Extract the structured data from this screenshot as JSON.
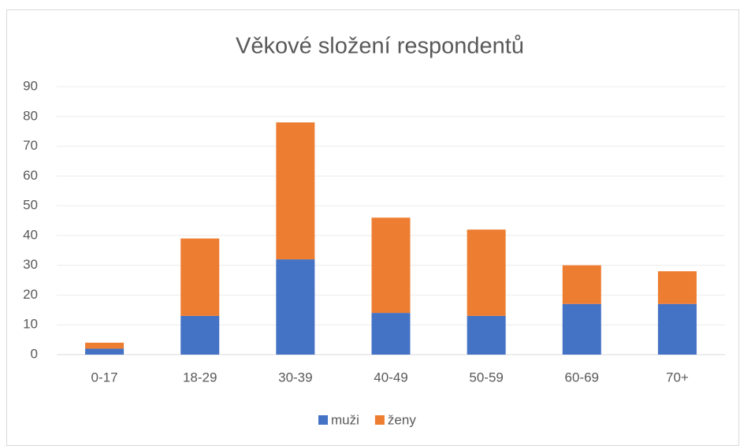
{
  "chart_data": {
    "type": "stacked_bar",
    "title": "Věkové složení respondentů",
    "categories": [
      "0-17",
      "18-29",
      "30-39",
      "40-49",
      "50-59",
      "60-69",
      "70+"
    ],
    "series": [
      {
        "name": "muži",
        "color": "#4472c4",
        "values": [
          2,
          13,
          32,
          14,
          13,
          17,
          17
        ]
      },
      {
        "name": "ženy",
        "color": "#ed7d31",
        "values": [
          2,
          26,
          46,
          32,
          29,
          13,
          11
        ]
      }
    ],
    "ylim": [
      0,
      90
    ],
    "yticks": [
      0,
      10,
      20,
      30,
      40,
      50,
      60,
      70,
      80,
      90
    ],
    "grid": true,
    "legend": "bottom"
  }
}
